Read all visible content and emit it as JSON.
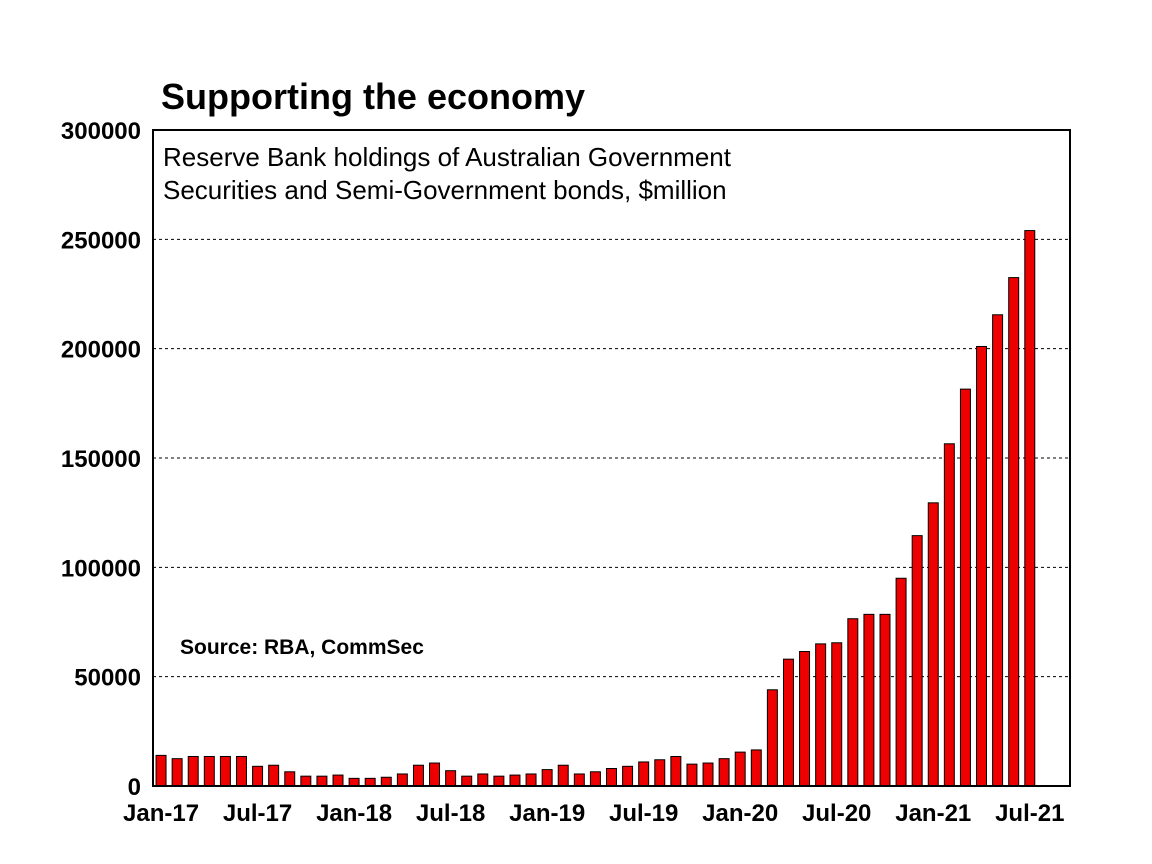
{
  "chart_data": {
    "type": "bar",
    "title": "Supporting the economy",
    "subtitle_lines": [
      "Reserve Bank holdings of Australian Government",
      "Securities and Semi-Government bonds, $million"
    ],
    "source": "Source: RBA, CommSec",
    "ylim": [
      0,
      300000
    ],
    "y_ticks": [
      0,
      50000,
      100000,
      150000,
      200000,
      250000,
      300000
    ],
    "y_tick_labels": [
      "0",
      "50000",
      "100000",
      "150000",
      "200000",
      "250000",
      "300000"
    ],
    "x_tick_labels": [
      "Jan-17",
      "Jul-17",
      "Jan-18",
      "Jul-18",
      "Jan-19",
      "Jul-19",
      "Jan-20",
      "Jul-20",
      "Jan-21",
      "Jul-21"
    ],
    "grid": "horizontal-dotted",
    "bar_color": "#ee0000",
    "categories": [
      "Jan-17",
      "Feb-17",
      "Mar-17",
      "Apr-17",
      "May-17",
      "Jun-17",
      "Jul-17",
      "Aug-17",
      "Sep-17",
      "Oct-17",
      "Nov-17",
      "Dec-17",
      "Jan-18",
      "Feb-18",
      "Mar-18",
      "Apr-18",
      "May-18",
      "Jun-18",
      "Jul-18",
      "Aug-18",
      "Sep-18",
      "Oct-18",
      "Nov-18",
      "Dec-18",
      "Jan-19",
      "Feb-19",
      "Mar-19",
      "Apr-19",
      "May-19",
      "Jun-19",
      "Jul-19",
      "Aug-19",
      "Sep-19",
      "Oct-19",
      "Nov-19",
      "Dec-19",
      "Jan-20",
      "Feb-20",
      "Mar-20",
      "Apr-20",
      "May-20",
      "Jun-20",
      "Jul-20",
      "Aug-20",
      "Sep-20",
      "Oct-20",
      "Nov-20",
      "Dec-20",
      "Jan-21",
      "Feb-21",
      "Mar-21",
      "Apr-21",
      "May-21",
      "Jun-21",
      "Jul-21",
      "Aug-21",
      "Sep-21"
    ],
    "values": [
      14000,
      12500,
      13500,
      13500,
      13500,
      13500,
      9000,
      9500,
      6500,
      4500,
      4500,
      5000,
      3500,
      3500,
      4000,
      5500,
      9500,
      10500,
      7000,
      4500,
      5500,
      4500,
      5000,
      5500,
      7500,
      9500,
      5500,
      6500,
      8000,
      9000,
      11000,
      12000,
      13500,
      10000,
      10500,
      12500,
      15500,
      16500,
      44000,
      58000,
      61500,
      65000,
      65500,
      76500,
      78500,
      78500,
      95000,
      114500,
      129500,
      156500,
      181500,
      201000,
      215500,
      232500,
      254000,
      null,
      null
    ]
  }
}
